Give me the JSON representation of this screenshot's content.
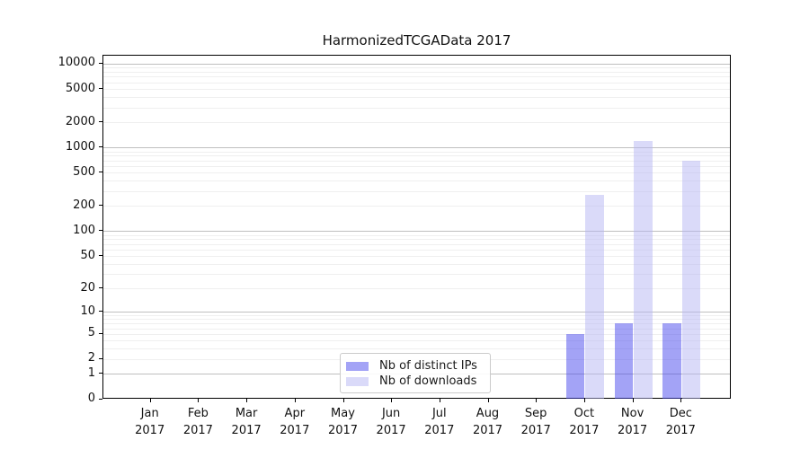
{
  "title": "HarmonizedTCGAData 2017",
  "colors": {
    "series_distinct_ips": "#4747ed",
    "series_downloads": "#b5b5f3",
    "bar_alpha": 0.5,
    "grid_major": "#bfbfbf",
    "grid_minor": "#efefef",
    "spine": "#000000",
    "background": "#ffffff"
  },
  "chart_data": {
    "type": "bar",
    "title": "HarmonizedTCGAData 2017",
    "categories": [
      "Jan 2017",
      "Feb 2017",
      "Mar 2017",
      "Apr 2017",
      "May 2017",
      "Jun 2017",
      "Jul 2017",
      "Aug 2017",
      "Sep 2017",
      "Oct 2017",
      "Nov 2017",
      "Dec 2017"
    ],
    "series": [
      {
        "name": "Nb of distinct IPs",
        "color": "#4747ed",
        "values": [
          0,
          0,
          0,
          0,
          0,
          0,
          0,
          0,
          0,
          5,
          7,
          7
        ]
      },
      {
        "name": "Nb of downloads",
        "color": "#b5b5f3",
        "values": [
          0,
          0,
          0,
          0,
          0,
          0,
          0,
          0,
          0,
          270,
          1200,
          700
        ]
      }
    ],
    "yscale": "log1p",
    "yticks": [
      0,
      1,
      2,
      5,
      10,
      20,
      50,
      100,
      200,
      500,
      1000,
      2000,
      5000,
      10000
    ],
    "ylim": [
      0,
      12450
    ],
    "xlabel": "",
    "ylabel": "",
    "grid": "both-horizontal",
    "legend_position": "lower center inside"
  }
}
